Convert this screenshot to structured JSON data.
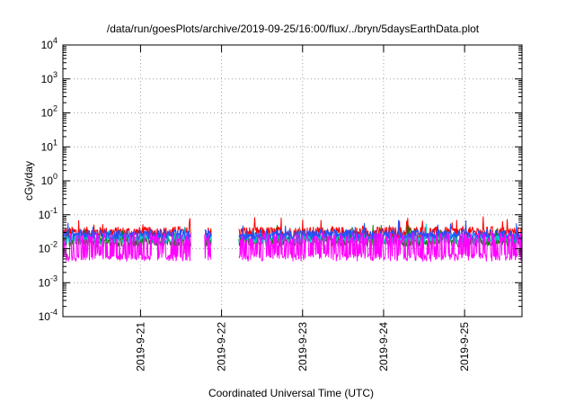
{
  "chart_data": {
    "type": "line",
    "title": "/data/run/goesPlots/archive/2019-09-25/16:00/flux/../bryn/5daysEarthData.plot",
    "xlabel": "Coordinated Universal Time (UTC)",
    "ylabel": "cGy/day",
    "y_scale": "log",
    "ylim_exponent": [
      -4,
      4
    ],
    "y_ticks": [
      {
        "base": "10",
        "exp": "-4"
      },
      {
        "base": "10",
        "exp": "-3"
      },
      {
        "base": "10",
        "exp": "-2"
      },
      {
        "base": "10",
        "exp": "-1"
      },
      {
        "base": "10",
        "exp": "0"
      },
      {
        "base": "10",
        "exp": "1"
      },
      {
        "base": "10",
        "exp": "2"
      },
      {
        "base": "10",
        "exp": "3"
      },
      {
        "base": "10",
        "exp": "4"
      }
    ],
    "x_range": [
      "2019-09-20T01:00",
      "2019-09-25T17:00"
    ],
    "x_ticks": [
      "2019-9-21",
      "2019-9-22",
      "2019-9-23",
      "2019-9-24",
      "2019-9-25"
    ],
    "grid": true,
    "data_gaps": [
      [
        "2019-09-21T15:00",
        "2019-09-21T19:00"
      ],
      [
        "2019-09-21T21:00",
        "2019-09-22T05:00"
      ]
    ],
    "series": [
      {
        "color": "#ff0000",
        "level": 0.03,
        "spread": 0.35
      },
      {
        "color": "#008000",
        "level": 0.017,
        "spread": 0.35
      },
      {
        "color": "#00c8c8",
        "level": 0.02,
        "spread": 0.3
      },
      {
        "color": "#2050ff",
        "level": 0.026,
        "spread": 0.3
      },
      {
        "color": "#ff00ff",
        "level": 0.006,
        "spread": 0.9
      }
    ]
  }
}
